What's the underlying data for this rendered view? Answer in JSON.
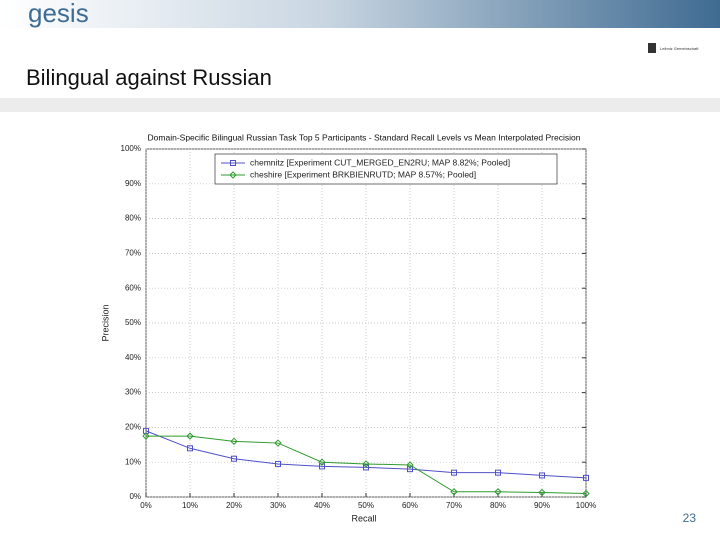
{
  "header": {
    "logo": "gesis",
    "title": "Bilingual against Russian",
    "partner_logo": "Leibniz Gemeinschaft"
  },
  "footer": {
    "page_number": "23"
  },
  "chart_data": {
    "type": "line",
    "title": "Domain-Specific Bilingual Russian Task Top 5 Participants - Standard Recall Levels vs Mean Interpolated Precision",
    "xlabel": "Recall",
    "ylabel": "Precision",
    "x": [
      0,
      10,
      20,
      30,
      40,
      50,
      60,
      70,
      80,
      90,
      100
    ],
    "series": [
      {
        "name": "chemnitz [Experiment CUT_MERGED_EN2RU; MAP 8.82%; Pooled]",
        "color": "#5050c8",
        "marker": "square",
        "values": [
          19,
          14,
          11,
          9.5,
          8.8,
          8.5,
          8,
          7,
          7,
          6.2,
          5.5
        ]
      },
      {
        "name": "cheshire [Experiment BRKBIENRUTD; MAP 8.57%; Pooled]",
        "color": "#2e9a2e",
        "marker": "diamond",
        "values": [
          17.5,
          17.5,
          16,
          15.5,
          10,
          9.5,
          9.2,
          1.5,
          1.5,
          1.3,
          1
        ]
      }
    ],
    "xlim": [
      0,
      100
    ],
    "ylim": [
      0,
      100
    ],
    "xticks": [
      {
        "value": 0,
        "label": "0%"
      },
      {
        "value": 10,
        "label": "10%"
      },
      {
        "value": 20,
        "label": "20%"
      },
      {
        "value": 30,
        "label": "30%"
      },
      {
        "value": 40,
        "label": "40%"
      },
      {
        "value": 50,
        "label": "50%"
      },
      {
        "value": 60,
        "label": "60%"
      },
      {
        "value": 70,
        "label": "70%"
      },
      {
        "value": 80,
        "label": "80%"
      },
      {
        "value": 90,
        "label": "90%"
      },
      {
        "value": 100,
        "label": "100%"
      }
    ],
    "yticks": [
      {
        "value": 0,
        "label": "0%"
      },
      {
        "value": 10,
        "label": "10%"
      },
      {
        "value": 20,
        "label": "20%"
      },
      {
        "value": 30,
        "label": "30%"
      },
      {
        "value": 40,
        "label": "40%"
      },
      {
        "value": 50,
        "label": "50%"
      },
      {
        "value": 60,
        "label": "60%"
      },
      {
        "value": 70,
        "label": "70%"
      },
      {
        "value": 80,
        "label": "80%"
      },
      {
        "value": 90,
        "label": "90%"
      },
      {
        "value": 100,
        "label": "100%"
      }
    ],
    "grid": true,
    "legend": "upper center"
  }
}
